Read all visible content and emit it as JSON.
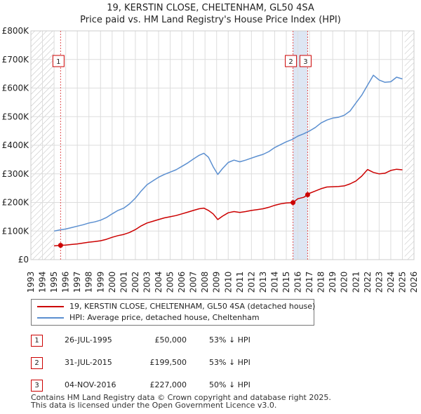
{
  "header": {
    "title": "19, KERSTIN CLOSE, CHELTENHAM, GL50 4SA",
    "subtitle": "Price paid vs. HM Land Registry's House Price Index (HPI)"
  },
  "legend": {
    "property": "19, KERSTIN CLOSE, CHELTENHAM, GL50 4SA (detached house)",
    "hpi": "HPI: Average price, detached house, Cheltenham"
  },
  "sales": [
    {
      "num": "1",
      "date": "26-JUL-1995",
      "price": "£50,000",
      "pct": "53% ↓ HPI"
    },
    {
      "num": "2",
      "date": "31-JUL-2015",
      "price": "£199,500",
      "pct": "53% ↓ HPI"
    },
    {
      "num": "3",
      "date": "04-NOV-2016",
      "price": "£227,000",
      "pct": "50% ↓ HPI"
    }
  ],
  "footer": {
    "line1": "Contains HM Land Registry data © Crown copyright and database right 2025.",
    "line2": "This data is licensed under the Open Government Licence v3.0."
  },
  "colors": {
    "property": "#cc0000",
    "hpi": "#5b8fd0",
    "grid": "#dddddd",
    "band": "#dde6f3",
    "hatch": "#bbbbbb"
  },
  "chart_data": {
    "type": "line",
    "title": "19, KERSTIN CLOSE, CHELTENHAM, GL50 4SA",
    "subtitle": "Price paid vs. HM Land Registry's House Price Index (HPI)",
    "xlim": [
      1993,
      2026
    ],
    "ylim": [
      0,
      800000
    ],
    "x_ticks": [
      "1993",
      "1994",
      "1995",
      "1996",
      "1997",
      "1998",
      "1999",
      "2000",
      "2001",
      "2002",
      "2003",
      "2004",
      "2005",
      "2006",
      "2007",
      "2008",
      "2009",
      "2010",
      "2011",
      "2012",
      "2013",
      "2014",
      "2015",
      "2016",
      "2017",
      "2018",
      "2019",
      "2020",
      "2021",
      "2022",
      "2023",
      "2024",
      "2025",
      "2026"
    ],
    "y_ticks": [
      {
        "value": 0,
        "label": "£0"
      },
      {
        "value": 100000,
        "label": "£100K"
      },
      {
        "value": 200000,
        "label": "£200K"
      },
      {
        "value": 300000,
        "label": "£300K"
      },
      {
        "value": 400000,
        "label": "£400K"
      },
      {
        "value": 500000,
        "label": "£500K"
      },
      {
        "value": 600000,
        "label": "£600K"
      },
      {
        "value": 700000,
        "label": "£700K"
      },
      {
        "value": 800000,
        "label": "£800K"
      }
    ],
    "hatched_before": 1995.0,
    "hatched_after": 2025.2,
    "shaded_band": [
      2015.58,
      2016.84
    ],
    "series": [
      {
        "name": "HPI: Average price, detached house, Cheltenham",
        "x": [
          1995.0,
          1995.5,
          1996.0,
          1996.5,
          1997.0,
          1997.5,
          1998.0,
          1998.5,
          1999.0,
          1999.5,
          2000.0,
          2000.5,
          2001.0,
          2001.5,
          2002.0,
          2002.5,
          2003.0,
          2003.5,
          2004.0,
          2004.5,
          2005.0,
          2005.5,
          2006.0,
          2006.5,
          2007.0,
          2007.5,
          2007.9,
          2008.3,
          2008.7,
          2009.1,
          2009.5,
          2010.0,
          2010.5,
          2011.0,
          2011.5,
          2012.0,
          2012.5,
          2013.0,
          2013.5,
          2014.0,
          2014.5,
          2015.0,
          2015.5,
          2016.0,
          2016.5,
          2017.0,
          2017.5,
          2018.0,
          2018.5,
          2019.0,
          2019.5,
          2020.0,
          2020.5,
          2021.0,
          2021.5,
          2022.0,
          2022.5,
          2023.0,
          2023.5,
          2024.0,
          2024.5,
          2025.0
        ],
        "values": [
          100000,
          104000,
          107000,
          112000,
          117000,
          122000,
          128000,
          132000,
          138000,
          147000,
          160000,
          172000,
          180000,
          195000,
          215000,
          240000,
          262000,
          275000,
          288000,
          298000,
          306000,
          314000,
          326000,
          338000,
          352000,
          365000,
          372000,
          358000,
          325000,
          298000,
          318000,
          340000,
          348000,
          342000,
          348000,
          355000,
          362000,
          368000,
          378000,
          392000,
          402000,
          412000,
          420000,
          432000,
          440000,
          450000,
          462000,
          478000,
          488000,
          495000,
          498000,
          505000,
          520000,
          548000,
          575000,
          610000,
          645000,
          628000,
          620000,
          622000,
          638000,
          632000
        ]
      },
      {
        "name": "19, KERSTIN CLOSE, CHELTENHAM, GL50 4SA (detached house)",
        "x": [
          1995.0,
          1995.56,
          1996.0,
          1996.5,
          1997.0,
          1997.5,
          1998.0,
          1998.5,
          1999.0,
          1999.5,
          2000.0,
          2000.5,
          2001.0,
          2001.5,
          2002.0,
          2002.5,
          2003.0,
          2003.5,
          2004.0,
          2004.5,
          2005.0,
          2005.5,
          2006.0,
          2006.5,
          2007.0,
          2007.5,
          2007.9,
          2008.3,
          2008.7,
          2009.1,
          2009.5,
          2010.0,
          2010.5,
          2011.0,
          2011.5,
          2012.0,
          2012.5,
          2013.0,
          2013.5,
          2014.0,
          2014.5,
          2015.0,
          2015.58,
          2016.0,
          2016.5,
          2016.84,
          2017.0,
          2017.5,
          2018.0,
          2018.5,
          2019.0,
          2019.5,
          2020.0,
          2020.5,
          2021.0,
          2021.5,
          2022.0,
          2022.5,
          2023.0,
          2023.5,
          2024.0,
          2024.5,
          2025.0
        ],
        "values": [
          48000,
          50000,
          51000,
          53000,
          55000,
          58000,
          61000,
          63000,
          66000,
          71000,
          78000,
          84000,
          88000,
          95000,
          105000,
          118000,
          128000,
          134000,
          140000,
          146000,
          150000,
          154000,
          160000,
          166000,
          172000,
          178000,
          180000,
          172000,
          160000,
          140000,
          152000,
          164000,
          168000,
          165000,
          168000,
          172000,
          175000,
          178000,
          183000,
          190000,
          195000,
          198000,
          199500,
          213000,
          218000,
          227000,
          232000,
          240000,
          248000,
          254000,
          255000,
          256000,
          258000,
          265000,
          275000,
          292000,
          315000,
          305000,
          300000,
          302000,
          312000,
          316000,
          314000
        ]
      }
    ],
    "markers": [
      {
        "label": "1",
        "x": 1995.56,
        "value": 50000
      },
      {
        "label": "2",
        "x": 2015.58,
        "value": 199500
      },
      {
        "label": "3",
        "x": 2016.84,
        "value": 227000
      }
    ]
  }
}
